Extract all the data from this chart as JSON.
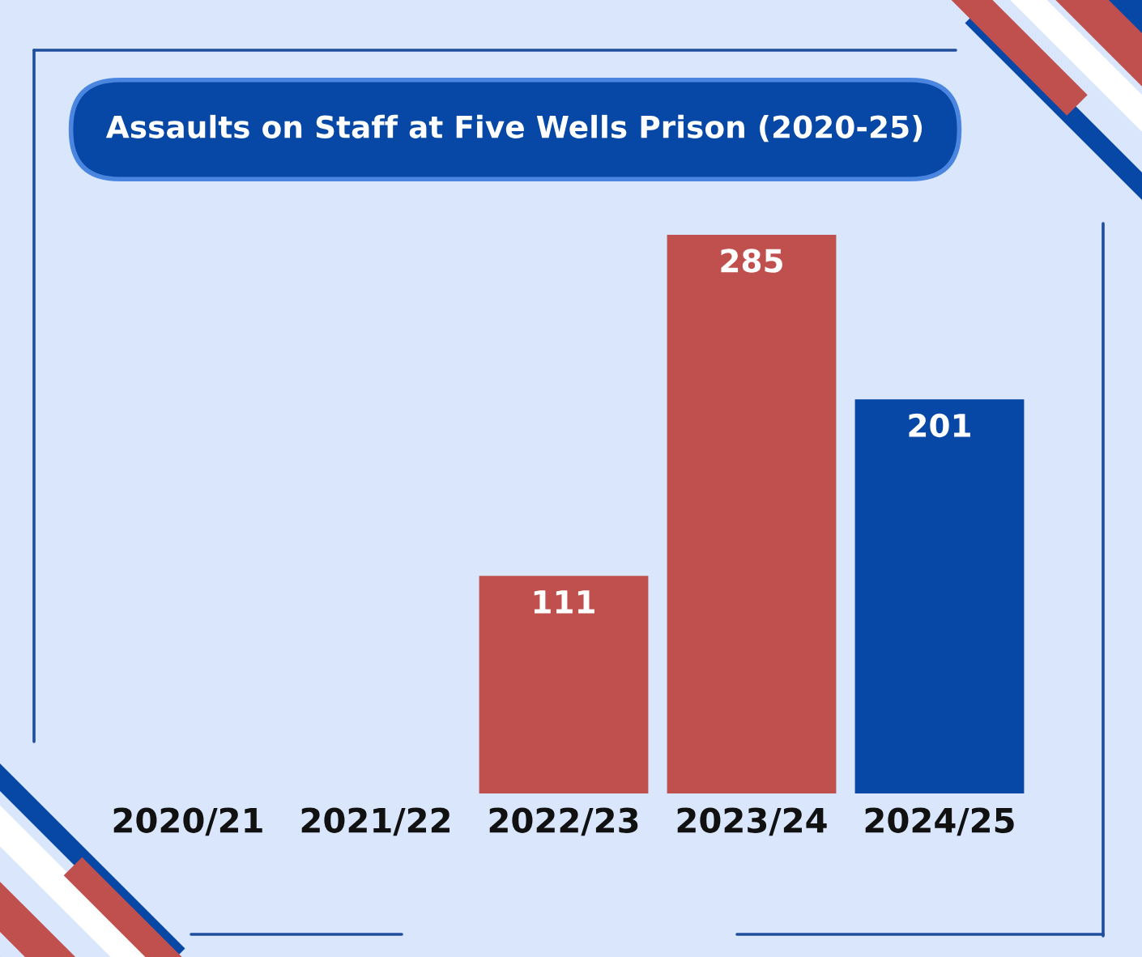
{
  "chart_data": {
    "type": "bar",
    "title": "Assaults on Staff at Five Wells Prison (2020-25)",
    "categories": [
      "2020/21",
      "2021/22",
      "2022/23",
      "2023/24",
      "2024/25"
    ],
    "values": [
      null,
      null,
      111,
      285,
      201
    ],
    "colors": [
      null,
      null,
      "#c0504d",
      "#c0504d",
      "#0747a6"
    ],
    "data_labels": true
  }
}
